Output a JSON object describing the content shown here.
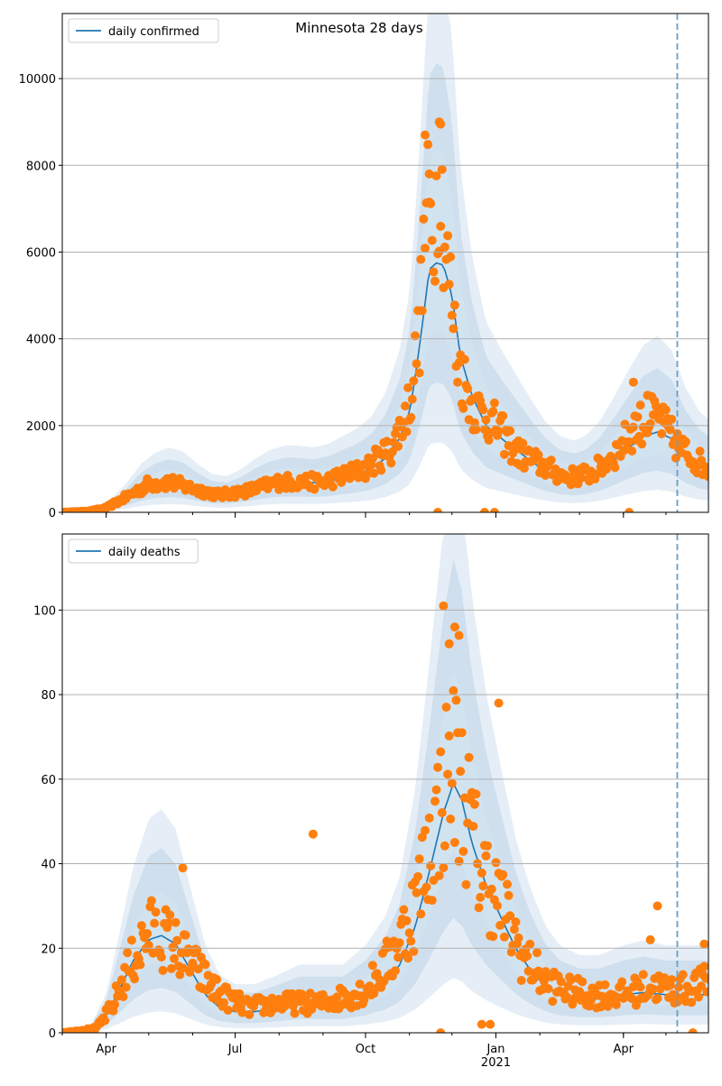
{
  "figure": {
    "title": "Minnesota 28 days"
  },
  "chart_data": [
    {
      "type": "line",
      "name": "confirmed",
      "title": "Minnesota 28 days",
      "legend": {
        "label": "daily confirmed",
        "placement": "top-left"
      },
      "x_start": "2020-03-01",
      "x_end": "2021-05-31",
      "cutoff_date": "2021-05-09",
      "ylim": [
        0,
        11500
      ],
      "yticks": [
        0,
        2000,
        4000,
        6000,
        8000,
        10000
      ],
      "ytick_labels": [
        "0",
        "2000",
        "4000",
        "6000",
        "8000",
        "10000"
      ],
      "grid": "y",
      "series_knots": [
        [
          "2020-03-01",
          0
        ],
        [
          "2020-03-15",
          10
        ],
        [
          "2020-03-25",
          60
        ],
        [
          "2020-04-05",
          150
        ],
        [
          "2020-04-15",
          300
        ],
        [
          "2020-04-25",
          500
        ],
        [
          "2020-05-05",
          620
        ],
        [
          "2020-05-15",
          680
        ],
        [
          "2020-05-25",
          640
        ],
        [
          "2020-06-05",
          500
        ],
        [
          "2020-06-15",
          400
        ],
        [
          "2020-06-25",
          380
        ],
        [
          "2020-07-05",
          450
        ],
        [
          "2020-07-15",
          560
        ],
        [
          "2020-07-25",
          650
        ],
        [
          "2020-08-05",
          700
        ],
        [
          "2020-08-15",
          700
        ],
        [
          "2020-08-25",
          680
        ],
        [
          "2020-09-05",
          720
        ],
        [
          "2020-09-15",
          800
        ],
        [
          "2020-09-25",
          880
        ],
        [
          "2020-10-05",
          1000
        ],
        [
          "2020-10-15",
          1250
        ],
        [
          "2020-10-25",
          1700
        ],
        [
          "2020-11-01",
          2300
        ],
        [
          "2020-11-05",
          3100
        ],
        [
          "2020-11-10",
          4300
        ],
        [
          "2020-11-15",
          5600
        ],
        [
          "2020-11-20",
          5750
        ],
        [
          "2020-11-25",
          5700
        ],
        [
          "2020-12-01",
          5000
        ],
        [
          "2020-12-07",
          3600
        ],
        [
          "2020-12-15",
          2700
        ],
        [
          "2020-12-25",
          2000
        ],
        [
          "2021-01-05",
          1700
        ],
        [
          "2021-01-15",
          1450
        ],
        [
          "2021-01-25",
          1200
        ],
        [
          "2021-02-05",
          950
        ],
        [
          "2021-02-15",
          800
        ],
        [
          "2021-02-25",
          750
        ],
        [
          "2021-03-05",
          800
        ],
        [
          "2021-03-15",
          950
        ],
        [
          "2021-03-25",
          1200
        ],
        [
          "2021-04-05",
          1500
        ],
        [
          "2021-04-15",
          1750
        ],
        [
          "2021-04-25",
          1850
        ],
        [
          "2021-05-05",
          1700
        ],
        [
          "2021-05-15",
          1300
        ],
        [
          "2021-05-25",
          1050
        ],
        [
          "2021-05-31",
          980
        ]
      ],
      "band_scales": [
        0.45,
        0.8,
        1.2
      ],
      "band_colors": [
        "#cfe0ee",
        "#bdd3e8",
        "#d5e5f2"
      ],
      "line_color": "#1f77b4",
      "points_color": "#ff7f0e",
      "points_knots": [
        [
          "2020-03-01",
          0
        ],
        [
          "2020-03-20",
          30
        ],
        [
          "2020-04-01",
          100
        ],
        [
          "2020-04-15",
          350
        ],
        [
          "2020-05-01",
          650
        ],
        [
          "2020-05-15",
          700
        ],
        [
          "2020-06-01",
          550
        ],
        [
          "2020-06-20",
          400
        ],
        [
          "2020-07-10",
          500
        ],
        [
          "2020-08-01",
          700
        ],
        [
          "2020-09-01",
          700
        ],
        [
          "2020-10-01",
          1000
        ],
        [
          "2020-10-20",
          1500
        ],
        [
          "2020-11-01",
          2500
        ],
        [
          "2020-11-08",
          4200
        ],
        [
          "2020-11-13",
          7000
        ],
        [
          "2020-11-18",
          6500
        ],
        [
          "2020-11-22",
          8000
        ],
        [
          "2020-11-27",
          6000
        ],
        [
          "2020-12-05",
          3500
        ],
        [
          "2020-12-15",
          2500
        ],
        [
          "2021-01-01",
          2000
        ],
        [
          "2021-01-15",
          1400
        ],
        [
          "2021-02-01",
          1100
        ],
        [
          "2021-02-20",
          800
        ],
        [
          "2021-03-10",
          900
        ],
        [
          "2021-03-25",
          1300
        ],
        [
          "2021-04-10",
          2000
        ],
        [
          "2021-04-25",
          2200
        ],
        [
          "2021-05-10",
          1500
        ],
        [
          "2021-05-31",
          1000
        ]
      ],
      "points_noise": 0.25,
      "points_extra": [
        [
          "2020-11-12",
          8700
        ],
        [
          "2020-11-22",
          9000
        ],
        [
          "2020-11-23",
          8950
        ],
        [
          "2020-11-15",
          7800
        ],
        [
          "2020-11-21",
          0
        ],
        [
          "2020-12-24",
          0
        ],
        [
          "2020-12-31",
          0
        ],
        [
          "2021-04-05",
          0
        ],
        [
          "2021-04-08",
          3000
        ],
        [
          "2021-04-18",
          2700
        ]
      ]
    },
    {
      "type": "line",
      "name": "deaths",
      "legend": {
        "label": "daily deaths",
        "placement": "top-left"
      },
      "x_start": "2020-03-01",
      "x_end": "2021-05-31",
      "cutoff_date": "2021-05-09",
      "ylim": [
        0,
        118
      ],
      "yticks": [
        0,
        20,
        40,
        60,
        80,
        100
      ],
      "ytick_labels": [
        "0",
        "20",
        "40",
        "60",
        "80",
        "100"
      ],
      "grid": "y",
      "xticks": [
        "2020-04-01",
        "2020-07-01",
        "2020-10-01",
        "2021-01-01",
        "2021-04-01"
      ],
      "xtick_labels": [
        "Apr",
        "Jul",
        "Oct",
        "Jan",
        "Apr"
      ],
      "xtick_sublabel": {
        "date": "2021-01-01",
        "text": "2021"
      },
      "series_knots": [
        [
          "2020-03-01",
          0
        ],
        [
          "2020-03-20",
          0.5
        ],
        [
          "2020-04-01",
          4
        ],
        [
          "2020-04-10",
          10
        ],
        [
          "2020-04-20",
          17
        ],
        [
          "2020-05-01",
          22
        ],
        [
          "2020-05-10",
          23
        ],
        [
          "2020-05-20",
          21
        ],
        [
          "2020-06-01",
          14
        ],
        [
          "2020-06-10",
          9
        ],
        [
          "2020-06-20",
          6
        ],
        [
          "2020-07-01",
          5
        ],
        [
          "2020-07-15",
          5
        ],
        [
          "2020-08-01",
          6
        ],
        [
          "2020-08-15",
          7
        ],
        [
          "2020-09-01",
          7
        ],
        [
          "2020-09-15",
          7
        ],
        [
          "2020-10-01",
          9
        ],
        [
          "2020-10-15",
          12
        ],
        [
          "2020-10-25",
          16
        ],
        [
          "2020-11-05",
          25
        ],
        [
          "2020-11-15",
          38
        ],
        [
          "2020-11-25",
          52
        ],
        [
          "2020-12-02",
          59
        ],
        [
          "2020-12-08",
          55
        ],
        [
          "2020-12-15",
          45
        ],
        [
          "2020-12-25",
          35
        ],
        [
          "2021-01-05",
          27
        ],
        [
          "2021-01-15",
          20
        ],
        [
          "2021-01-25",
          15
        ],
        [
          "2021-02-05",
          11
        ],
        [
          "2021-02-15",
          9
        ],
        [
          "2021-03-01",
          8
        ],
        [
          "2021-03-15",
          8
        ],
        [
          "2021-04-01",
          9
        ],
        [
          "2021-04-15",
          9.5
        ],
        [
          "2021-05-01",
          9
        ],
        [
          "2021-05-15",
          9
        ],
        [
          "2021-05-31",
          9
        ]
      ],
      "band_scales": [
        0.45,
        0.9,
        1.3
      ],
      "band_colors": [
        "#cfe0ee",
        "#bdd3e8",
        "#d5e5f2"
      ],
      "line_color": "#1f77b4",
      "points_color": "#ff7f0e",
      "points_knots": [
        [
          "2020-03-01",
          0
        ],
        [
          "2020-03-25",
          1
        ],
        [
          "2020-04-05",
          6
        ],
        [
          "2020-04-15",
          14
        ],
        [
          "2020-05-01",
          24
        ],
        [
          "2020-05-15",
          22
        ],
        [
          "2020-06-01",
          16
        ],
        [
          "2020-06-20",
          9
        ],
        [
          "2020-07-10",
          6
        ],
        [
          "2020-08-01",
          7
        ],
        [
          "2020-09-01",
          7
        ],
        [
          "2020-10-01",
          10
        ],
        [
          "2020-10-20",
          18
        ],
        [
          "2020-11-05",
          30
        ],
        [
          "2020-11-20",
          50
        ],
        [
          "2020-12-01",
          65
        ],
        [
          "2020-12-10",
          55
        ],
        [
          "2020-12-20",
          40
        ],
        [
          "2021-01-05",
          30
        ],
        [
          "2021-01-20",
          18
        ],
        [
          "2021-02-05",
          12
        ],
        [
          "2021-02-20",
          10
        ],
        [
          "2021-03-10",
          9
        ],
        [
          "2021-04-01",
          9
        ],
        [
          "2021-04-20",
          11
        ],
        [
          "2021-05-10",
          10
        ],
        [
          "2021-05-31",
          12
        ]
      ],
      "points_noise": 0.35,
      "points_extra": [
        [
          "2020-11-25",
          101
        ],
        [
          "2020-12-03",
          96
        ],
        [
          "2020-12-06",
          94
        ],
        [
          "2020-11-29",
          92
        ],
        [
          "2020-08-25",
          47
        ],
        [
          "2020-05-25",
          39
        ],
        [
          "2021-01-03",
          78
        ],
        [
          "2020-11-23",
          0
        ],
        [
          "2020-12-22",
          2
        ],
        [
          "2020-12-28",
          2
        ],
        [
          "2021-04-25",
          30
        ],
        [
          "2021-04-20",
          22
        ],
        [
          "2021-05-28",
          21
        ],
        [
          "2021-05-20",
          0
        ]
      ]
    }
  ]
}
